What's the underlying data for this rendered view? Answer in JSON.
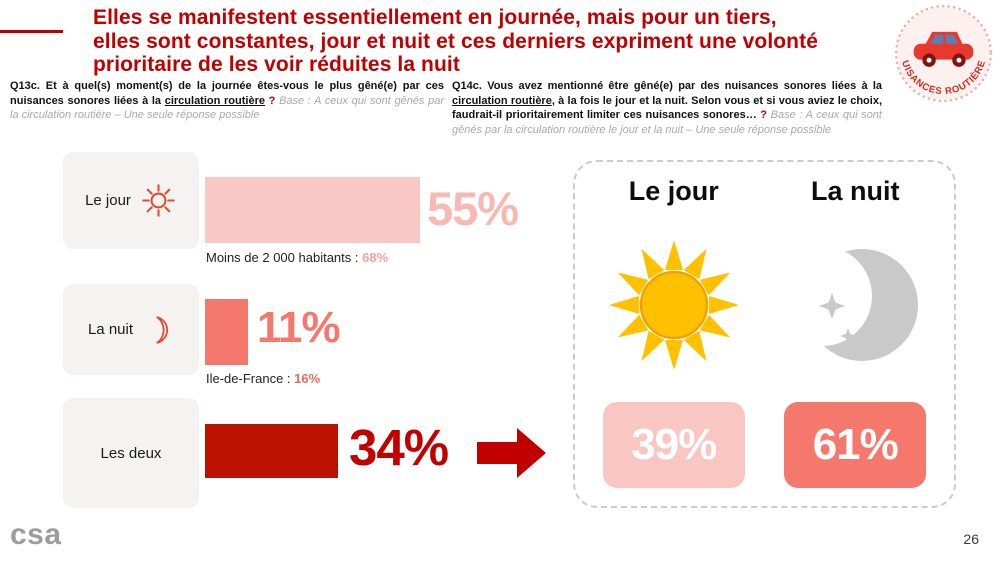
{
  "title_lines": [
    "Elles se manifestent essentiellement en journée, mais pour un tiers,",
    "elles sont constantes, jour et nuit et ces derniers expriment une volonté",
    "prioritaire de les voir réduites la nuit"
  ],
  "badge": {
    "label": "NUISANCES ROUTIÈRES"
  },
  "question_left": {
    "lead": "Q13c. Et à quel(s) moment(s) de la journée êtes-vous le plus gêné(e) par ces nuisances sonores liées à la ",
    "underlined": "circulation routière",
    "mark": " ?",
    "base": " Base : A ceux qui sont gênés par la circulation routière – Une seule réponse possible"
  },
  "question_right": {
    "lead": "Q14c. Vous avez mentionné être gêné(e) par des nuisances sonores liées à la ",
    "underlined": "circulation routière",
    "middle": ", à la fois le jour et la nuit. Selon vous et si vous aviez le choix, faudrait-il prioritairement limiter ces nuisances sonores… ",
    "mark": "?",
    "base": " Base : A ceux qui sont gênés par la circulation routière le jour et la nuit – Une seule réponse possible"
  },
  "chart_data": [
    {
      "type": "bar",
      "orientation": "horizontal",
      "unit": "%",
      "xlim": [
        0,
        100
      ],
      "categories": [
        "Le jour",
        "La nuit",
        "Les deux"
      ],
      "values": [
        55,
        11,
        34
      ],
      "labels": [
        "55%",
        "11%",
        "34%"
      ],
      "sub_annotations": [
        {
          "prefix": "Moins de 2 000 habitants : ",
          "value": "68%"
        },
        {
          "prefix": "Ile-de-France : ",
          "value": "16%"
        }
      ]
    },
    {
      "type": "bar",
      "unit": "%",
      "xlim": [
        0,
        100
      ],
      "categories": [
        "Le jour",
        "La nuit"
      ],
      "values": [
        39,
        61
      ],
      "labels": [
        "39%",
        "61%"
      ]
    }
  ],
  "footer": {
    "logo": "csa",
    "page_number": "26"
  },
  "icons": {
    "sun-outline-icon": "sun line icon (red outline)",
    "moon-outline-icon": "crescent moon line icon (red outline)",
    "sun-icon": "filled sun (gold)",
    "moon-icon": "filled crescent moon with sparkles (gray)",
    "arrow-right-icon": "solid block arrow pointing right (dark red)",
    "car-icon": "red car inside dotted circle badge"
  },
  "colors": {
    "title_red": "#C00000",
    "bar_light_pink": "#F9C8C4",
    "bar_salmon": "#F4796C",
    "bar_dark_red": "#BB1101",
    "value_pink_text": "#F6B9B3",
    "annotation_pink": "#F2A39B",
    "annotation_salmon": "#EE6B5D",
    "sun_gold": "#FFC000",
    "moon_gray": "#C9C9C9",
    "panel_border_gray": "#CCCCCC",
    "category_box_gray": "#F4F3F2",
    "base_text_gray": "#A9A9A9"
  }
}
